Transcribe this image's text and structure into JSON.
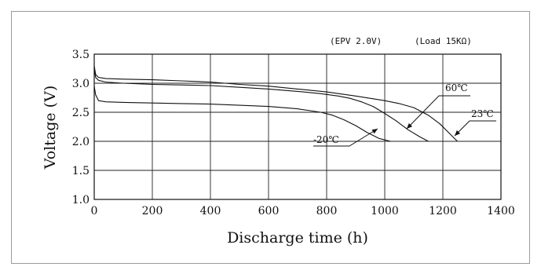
{
  "chart_data": {
    "type": "line",
    "title": "",
    "annotations": {
      "left": "(EPV 2.0V)",
      "right": "(Load 15KΩ)"
    },
    "xlabel": "Discharge time (h)",
    "ylabel": "Voltage (V)",
    "xlim": [
      0,
      1400
    ],
    "ylim": [
      1.0,
      3.5
    ],
    "x_ticks": [
      "0",
      "200",
      "400",
      "600",
      "800",
      "1000",
      "1200",
      "1400"
    ],
    "y_ticks": [
      "1.0",
      "1.5",
      "2.0",
      "2.5",
      "3.0",
      "3.5"
    ],
    "grid": true,
    "series": [
      {
        "name": "60℃",
        "x": [
          0,
          5,
          15,
          40,
          100,
          200,
          300,
          400,
          500,
          600,
          700,
          780,
          840,
          880,
          920,
          960,
          1000,
          1040,
          1080,
          1120,
          1150
        ],
        "y": [
          3.25,
          3.1,
          3.05,
          3.02,
          3.0,
          2.98,
          2.97,
          2.96,
          2.93,
          2.9,
          2.86,
          2.82,
          2.78,
          2.74,
          2.68,
          2.6,
          2.48,
          2.35,
          2.2,
          2.08,
          2.0
        ]
      },
      {
        "name": "23℃",
        "x": [
          0,
          5,
          15,
          40,
          100,
          200,
          300,
          400,
          500,
          600,
          700,
          800,
          900,
          1000,
          1050,
          1100,
          1150,
          1190,
          1220,
          1250
        ],
        "y": [
          3.3,
          3.15,
          3.1,
          3.08,
          3.07,
          3.06,
          3.04,
          3.02,
          2.98,
          2.95,
          2.9,
          2.85,
          2.78,
          2.7,
          2.65,
          2.58,
          2.45,
          2.3,
          2.15,
          2.0
        ]
      },
      {
        "name": "-20℃",
        "x": [
          0,
          5,
          15,
          40,
          100,
          200,
          300,
          400,
          500,
          600,
          700,
          780,
          820,
          860,
          900,
          940,
          980,
          1020
        ],
        "y": [
          2.95,
          2.8,
          2.7,
          2.68,
          2.67,
          2.66,
          2.65,
          2.64,
          2.62,
          2.6,
          2.56,
          2.5,
          2.45,
          2.37,
          2.27,
          2.15,
          2.05,
          2.0
        ]
      }
    ],
    "series_labels": {
      "60": "60℃",
      "23": "23℃",
      "m20": "-20℃"
    }
  }
}
